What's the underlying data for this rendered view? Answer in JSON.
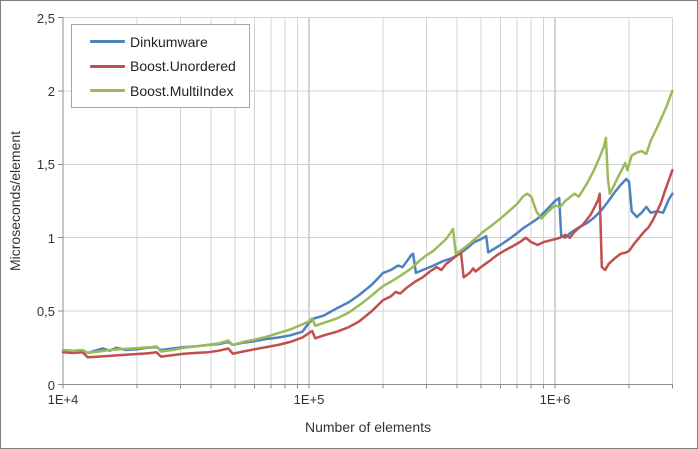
{
  "colors": {
    "background": "#ffffff",
    "figure_border": "#7f7f7f",
    "gridline_minor": "#d3d3d3",
    "gridline_major": "#a8a8a8",
    "axis": "#8c8c8c",
    "text": "#333333",
    "legend_border": "#a6a6a6"
  },
  "chart_data": {
    "type": "line",
    "title": "",
    "xlabel": "Number of elements",
    "ylabel": "Microseconds/element",
    "x_scale": "log",
    "x_range": [
      10000,
      3000000
    ],
    "ylim": [
      0,
      2.5
    ],
    "grid": true,
    "legend_position": "top-left",
    "y_ticks": [
      {
        "value": 0,
        "label": "0"
      },
      {
        "value": 0.5,
        "label": "0,5"
      },
      {
        "value": 1,
        "label": "1"
      },
      {
        "value": 1.5,
        "label": "1,5"
      },
      {
        "value": 2,
        "label": "2"
      },
      {
        "value": 2.5,
        "label": "2,5"
      }
    ],
    "x_major_ticks": [
      {
        "value": 10000,
        "label": "1E+4"
      },
      {
        "value": 100000,
        "label": "1E+5"
      },
      {
        "value": 1000000,
        "label": "1E+6"
      }
    ],
    "x_minor_ticks": [
      20000,
      30000,
      40000,
      50000,
      60000,
      70000,
      80000,
      90000,
      200000,
      300000,
      400000,
      500000,
      600000,
      700000,
      800000,
      900000,
      2000000,
      3000000
    ],
    "series": [
      {
        "name": "Dinkumware",
        "color": "#4F81BD",
        "points": [
          [
            10000,
            0.23
          ],
          [
            11000,
            0.225
          ],
          [
            12000,
            0.23
          ],
          [
            12600,
            0.215
          ],
          [
            13500,
            0.23
          ],
          [
            14500,
            0.245
          ],
          [
            15500,
            0.23
          ],
          [
            16500,
            0.25
          ],
          [
            18000,
            0.235
          ],
          [
            20000,
            0.24
          ],
          [
            22000,
            0.25
          ],
          [
            24000,
            0.255
          ],
          [
            25000,
            0.235
          ],
          [
            28000,
            0.245
          ],
          [
            31000,
            0.255
          ],
          [
            35000,
            0.26
          ],
          [
            39000,
            0.27
          ],
          [
            43000,
            0.275
          ],
          [
            47000,
            0.29
          ],
          [
            49000,
            0.27
          ],
          [
            54000,
            0.285
          ],
          [
            60000,
            0.295
          ],
          [
            67000,
            0.31
          ],
          [
            75000,
            0.32
          ],
          [
            84000,
            0.335
          ],
          [
            94000,
            0.36
          ],
          [
            100000,
            0.42
          ],
          [
            105000,
            0.45
          ],
          [
            115000,
            0.47
          ],
          [
            130000,
            0.52
          ],
          [
            145000,
            0.56
          ],
          [
            160000,
            0.61
          ],
          [
            180000,
            0.68
          ],
          [
            200000,
            0.76
          ],
          [
            215000,
            0.78
          ],
          [
            230000,
            0.81
          ],
          [
            240000,
            0.8
          ],
          [
            250000,
            0.84
          ],
          [
            260000,
            0.88
          ],
          [
            265000,
            0.89
          ],
          [
            272000,
            0.76
          ],
          [
            290000,
            0.78
          ],
          [
            320000,
            0.81
          ],
          [
            350000,
            0.84
          ],
          [
            380000,
            0.86
          ],
          [
            410000,
            0.89
          ],
          [
            440000,
            0.93
          ],
          [
            470000,
            0.97
          ],
          [
            500000,
            0.99
          ],
          [
            525000,
            1.01
          ],
          [
            535000,
            0.9
          ],
          [
            560000,
            0.92
          ],
          [
            600000,
            0.95
          ],
          [
            650000,
            0.99
          ],
          [
            700000,
            1.03
          ],
          [
            750000,
            1.07
          ],
          [
            800000,
            1.1
          ],
          [
            850000,
            1.13
          ],
          [
            900000,
            1.17
          ],
          [
            950000,
            1.21
          ],
          [
            1000000,
            1.25
          ],
          [
            1040000,
            1.27
          ],
          [
            1060000,
            1.01
          ],
          [
            1100000,
            1.0
          ],
          [
            1150000,
            1.03
          ],
          [
            1250000,
            1.07
          ],
          [
            1350000,
            1.1
          ],
          [
            1450000,
            1.14
          ],
          [
            1550000,
            1.19
          ],
          [
            1650000,
            1.25
          ],
          [
            1750000,
            1.31
          ],
          [
            1850000,
            1.36
          ],
          [
            1950000,
            1.4
          ],
          [
            2000000,
            1.38
          ],
          [
            2050000,
            1.18
          ],
          [
            2150000,
            1.14
          ],
          [
            2250000,
            1.17
          ],
          [
            2350000,
            1.21
          ],
          [
            2450000,
            1.17
          ],
          [
            2600000,
            1.18
          ],
          [
            2750000,
            1.17
          ],
          [
            2900000,
            1.26
          ],
          [
            3000000,
            1.3
          ]
        ]
      },
      {
        "name": "Boost.Unordered",
        "color": "#C0504D",
        "points": [
          [
            10000,
            0.22
          ],
          [
            11000,
            0.215
          ],
          [
            12000,
            0.22
          ],
          [
            12600,
            0.185
          ],
          [
            14000,
            0.19
          ],
          [
            15500,
            0.195
          ],
          [
            17000,
            0.2
          ],
          [
            19000,
            0.205
          ],
          [
            21000,
            0.21
          ],
          [
            23000,
            0.215
          ],
          [
            24000,
            0.22
          ],
          [
            25000,
            0.19
          ],
          [
            28000,
            0.2
          ],
          [
            31000,
            0.21
          ],
          [
            35000,
            0.215
          ],
          [
            39000,
            0.22
          ],
          [
            43000,
            0.23
          ],
          [
            47000,
            0.245
          ],
          [
            49000,
            0.21
          ],
          [
            54000,
            0.225
          ],
          [
            60000,
            0.24
          ],
          [
            67000,
            0.255
          ],
          [
            75000,
            0.27
          ],
          [
            84000,
            0.29
          ],
          [
            94000,
            0.32
          ],
          [
            100000,
            0.35
          ],
          [
            103000,
            0.365
          ],
          [
            106000,
            0.315
          ],
          [
            115000,
            0.335
          ],
          [
            130000,
            0.36
          ],
          [
            145000,
            0.39
          ],
          [
            160000,
            0.43
          ],
          [
            180000,
            0.5
          ],
          [
            200000,
            0.575
          ],
          [
            215000,
            0.6
          ],
          [
            225000,
            0.63
          ],
          [
            235000,
            0.62
          ],
          [
            250000,
            0.66
          ],
          [
            270000,
            0.7
          ],
          [
            290000,
            0.73
          ],
          [
            310000,
            0.77
          ],
          [
            330000,
            0.8
          ],
          [
            345000,
            0.78
          ],
          [
            360000,
            0.82
          ],
          [
            380000,
            0.85
          ],
          [
            400000,
            0.88
          ],
          [
            415000,
            0.9
          ],
          [
            425000,
            0.73
          ],
          [
            450000,
            0.76
          ],
          [
            465000,
            0.79
          ],
          [
            475000,
            0.77
          ],
          [
            500000,
            0.8
          ],
          [
            540000,
            0.84
          ],
          [
            580000,
            0.88
          ],
          [
            620000,
            0.91
          ],
          [
            670000,
            0.94
          ],
          [
            720000,
            0.97
          ],
          [
            760000,
            1.0
          ],
          [
            800000,
            0.97
          ],
          [
            850000,
            0.95
          ],
          [
            900000,
            0.97
          ],
          [
            950000,
            0.98
          ],
          [
            1000000,
            0.99
          ],
          [
            1050000,
            1.0
          ],
          [
            1100000,
            1.02
          ],
          [
            1150000,
            1.0
          ],
          [
            1200000,
            1.04
          ],
          [
            1300000,
            1.09
          ],
          [
            1400000,
            1.16
          ],
          [
            1450000,
            1.21
          ],
          [
            1500000,
            1.26
          ],
          [
            1520000,
            1.3
          ],
          [
            1550000,
            0.8
          ],
          [
            1600000,
            0.78
          ],
          [
            1650000,
            0.82
          ],
          [
            1750000,
            0.86
          ],
          [
            1850000,
            0.89
          ],
          [
            1950000,
            0.9
          ],
          [
            2000000,
            0.91
          ],
          [
            2100000,
            0.96
          ],
          [
            2200000,
            1.0
          ],
          [
            2300000,
            1.04
          ],
          [
            2400000,
            1.07
          ],
          [
            2500000,
            1.12
          ],
          [
            2600000,
            1.18
          ],
          [
            2700000,
            1.24
          ],
          [
            2800000,
            1.32
          ],
          [
            2900000,
            1.39
          ],
          [
            3000000,
            1.46
          ]
        ]
      },
      {
        "name": "Boost.MultiIndex",
        "color": "#9BBB59",
        "points": [
          [
            10000,
            0.235
          ],
          [
            11000,
            0.23
          ],
          [
            12000,
            0.235
          ],
          [
            12600,
            0.215
          ],
          [
            14000,
            0.225
          ],
          [
            15500,
            0.235
          ],
          [
            17000,
            0.24
          ],
          [
            19000,
            0.245
          ],
          [
            21000,
            0.25
          ],
          [
            23000,
            0.255
          ],
          [
            24000,
            0.26
          ],
          [
            25000,
            0.225
          ],
          [
            28000,
            0.235
          ],
          [
            31000,
            0.25
          ],
          [
            35000,
            0.26
          ],
          [
            39000,
            0.27
          ],
          [
            43000,
            0.28
          ],
          [
            47000,
            0.3
          ],
          [
            49000,
            0.27
          ],
          [
            54000,
            0.29
          ],
          [
            60000,
            0.305
          ],
          [
            67000,
            0.325
          ],
          [
            75000,
            0.35
          ],
          [
            84000,
            0.375
          ],
          [
            94000,
            0.41
          ],
          [
            100000,
            0.43
          ],
          [
            103000,
            0.45
          ],
          [
            106000,
            0.4
          ],
          [
            115000,
            0.42
          ],
          [
            130000,
            0.45
          ],
          [
            145000,
            0.49
          ],
          [
            160000,
            0.54
          ],
          [
            175000,
            0.59
          ],
          [
            190000,
            0.64
          ],
          [
            200000,
            0.67
          ],
          [
            220000,
            0.71
          ],
          [
            240000,
            0.75
          ],
          [
            260000,
            0.79
          ],
          [
            280000,
            0.84
          ],
          [
            300000,
            0.88
          ],
          [
            320000,
            0.91
          ],
          [
            340000,
            0.95
          ],
          [
            360000,
            0.99
          ],
          [
            375000,
            1.03
          ],
          [
            385000,
            1.06
          ],
          [
            395000,
            0.89
          ],
          [
            420000,
            0.92
          ],
          [
            450000,
            0.96
          ],
          [
            480000,
            1.0
          ],
          [
            510000,
            1.04
          ],
          [
            540000,
            1.07
          ],
          [
            570000,
            1.1
          ],
          [
            600000,
            1.13
          ],
          [
            640000,
            1.17
          ],
          [
            680000,
            1.21
          ],
          [
            710000,
            1.24
          ],
          [
            740000,
            1.28
          ],
          [
            770000,
            1.3
          ],
          [
            800000,
            1.28
          ],
          [
            840000,
            1.18
          ],
          [
            880000,
            1.13
          ],
          [
            940000,
            1.18
          ],
          [
            1000000,
            1.22
          ],
          [
            1050000,
            1.21
          ],
          [
            1100000,
            1.25
          ],
          [
            1200000,
            1.3
          ],
          [
            1250000,
            1.28
          ],
          [
            1350000,
            1.37
          ],
          [
            1450000,
            1.47
          ],
          [
            1520000,
            1.55
          ],
          [
            1580000,
            1.62
          ],
          [
            1610000,
            1.68
          ],
          [
            1640000,
            1.4
          ],
          [
            1670000,
            1.3
          ],
          [
            1720000,
            1.34
          ],
          [
            1800000,
            1.41
          ],
          [
            1880000,
            1.47
          ],
          [
            1930000,
            1.51
          ],
          [
            1970000,
            1.46
          ],
          [
            2050000,
            1.56
          ],
          [
            2150000,
            1.58
          ],
          [
            2250000,
            1.59
          ],
          [
            2350000,
            1.57
          ],
          [
            2450000,
            1.66
          ],
          [
            2550000,
            1.72
          ],
          [
            2650000,
            1.78
          ],
          [
            2750000,
            1.84
          ],
          [
            2850000,
            1.9
          ],
          [
            2950000,
            1.97
          ],
          [
            3000000,
            2.0
          ]
        ]
      }
    ]
  }
}
